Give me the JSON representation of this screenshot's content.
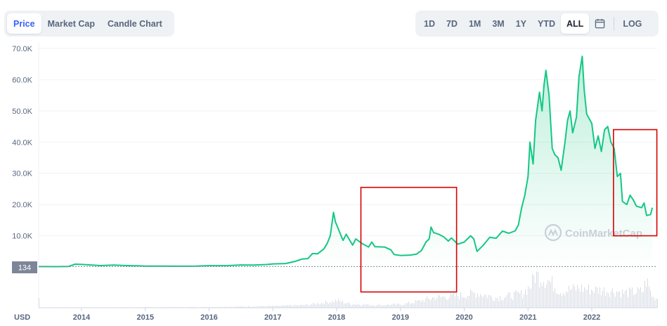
{
  "tabs_left": [
    {
      "label": "Price",
      "active": true
    },
    {
      "label": "Market Cap",
      "active": false
    },
    {
      "label": "Candle Chart",
      "active": false
    }
  ],
  "tabs_right": [
    {
      "label": "1D",
      "active": false
    },
    {
      "label": "7D",
      "active": false
    },
    {
      "label": "1M",
      "active": false
    },
    {
      "label": "3M",
      "active": false
    },
    {
      "label": "1Y",
      "active": false
    },
    {
      "label": "YTD",
      "active": false
    },
    {
      "label": "ALL",
      "active": true
    }
  ],
  "log_label": "LOG",
  "calendar_icon": "calendar-icon",
  "currency_label": "USD",
  "current_price_label": "134",
  "watermark": "CoinMarketCap",
  "colors": {
    "line": "#16c784",
    "area_top": "#16c784",
    "highlight_box": "#d80000",
    "price_tag": "#7d8698"
  },
  "chart_data": {
    "type": "area",
    "title": "",
    "xlabel": "",
    "ylabel": "",
    "currency": "USD",
    "y_ticks": [
      "10.0K",
      "20.0K",
      "30.0K",
      "40.0K",
      "50.0K",
      "60.0K",
      "70.0K"
    ],
    "x_ticks": [
      "2014",
      "2015",
      "2016",
      "2017",
      "2018",
      "2019",
      "2020",
      "2021",
      "2022"
    ],
    "ylim": [
      0,
      70000
    ],
    "xlim": [
      2013.33,
      2022.95
    ],
    "grid": true,
    "current_price": 134,
    "series": [
      {
        "values": [
          [
            2013.33,
            134
          ],
          [
            2013.6,
            110
          ],
          [
            2013.8,
            190
          ],
          [
            2013.9,
            900
          ],
          [
            2014.0,
            800
          ],
          [
            2014.1,
            700
          ],
          [
            2014.3,
            450
          ],
          [
            2014.5,
            600
          ],
          [
            2014.7,
            450
          ],
          [
            2014.9,
            350
          ],
          [
            2015.0,
            300
          ],
          [
            2015.2,
            260
          ],
          [
            2015.5,
            250
          ],
          [
            2015.8,
            300
          ],
          [
            2016.0,
            430
          ],
          [
            2016.3,
            440
          ],
          [
            2016.5,
            650
          ],
          [
            2016.7,
            620
          ],
          [
            2016.9,
            780
          ],
          [
            2017.0,
            1000
          ],
          [
            2017.2,
            1100
          ],
          [
            2017.35,
            1800
          ],
          [
            2017.45,
            2500
          ],
          [
            2017.55,
            2700
          ],
          [
            2017.62,
            4300
          ],
          [
            2017.7,
            4200
          ],
          [
            2017.8,
            5800
          ],
          [
            2017.85,
            7500
          ],
          [
            2017.9,
            10000
          ],
          [
            2017.95,
            17500
          ],
          [
            2017.98,
            14500
          ],
          [
            2018.0,
            13500
          ],
          [
            2018.05,
            11000
          ],
          [
            2018.1,
            8500
          ],
          [
            2018.15,
            10500
          ],
          [
            2018.25,
            7000
          ],
          [
            2018.3,
            9000
          ],
          [
            2018.4,
            7500
          ],
          [
            2018.5,
            6400
          ],
          [
            2018.55,
            8000
          ],
          [
            2018.6,
            6500
          ],
          [
            2018.75,
            6400
          ],
          [
            2018.85,
            5500
          ],
          [
            2018.9,
            4000
          ],
          [
            2019.0,
            3700
          ],
          [
            2019.15,
            3800
          ],
          [
            2019.25,
            4100
          ],
          [
            2019.33,
            5300
          ],
          [
            2019.4,
            8000
          ],
          [
            2019.45,
            9000
          ],
          [
            2019.48,
            12800
          ],
          [
            2019.52,
            11000
          ],
          [
            2019.6,
            10500
          ],
          [
            2019.68,
            9600
          ],
          [
            2019.75,
            8300
          ],
          [
            2019.8,
            9300
          ],
          [
            2019.9,
            7300
          ],
          [
            2020.0,
            8000
          ],
          [
            2020.1,
            10000
          ],
          [
            2020.15,
            9000
          ],
          [
            2020.2,
            5000
          ],
          [
            2020.3,
            7000
          ],
          [
            2020.4,
            9500
          ],
          [
            2020.5,
            9200
          ],
          [
            2020.6,
            11500
          ],
          [
            2020.7,
            10800
          ],
          [
            2020.8,
            11600
          ],
          [
            2020.85,
            13500
          ],
          [
            2020.9,
            19000
          ],
          [
            2020.95,
            23000
          ],
          [
            2021.0,
            29000
          ],
          [
            2021.03,
            40000
          ],
          [
            2021.08,
            33000
          ],
          [
            2021.12,
            47000
          ],
          [
            2021.18,
            56000
          ],
          [
            2021.22,
            50000
          ],
          [
            2021.25,
            58000
          ],
          [
            2021.28,
            63000
          ],
          [
            2021.33,
            55000
          ],
          [
            2021.38,
            38000
          ],
          [
            2021.42,
            36000
          ],
          [
            2021.47,
            35000
          ],
          [
            2021.52,
            31000
          ],
          [
            2021.58,
            40000
          ],
          [
            2021.62,
            47000
          ],
          [
            2021.66,
            50000
          ],
          [
            2021.7,
            43000
          ],
          [
            2021.76,
            48000
          ],
          [
            2021.8,
            61000
          ],
          [
            2021.85,
            67500
          ],
          [
            2021.88,
            57000
          ],
          [
            2021.92,
            49000
          ],
          [
            2022.0,
            46000
          ],
          [
            2022.05,
            38000
          ],
          [
            2022.1,
            42000
          ],
          [
            2022.15,
            37000
          ],
          [
            2022.2,
            44000
          ],
          [
            2022.25,
            45000
          ],
          [
            2022.3,
            40000
          ],
          [
            2022.35,
            38000
          ],
          [
            2022.4,
            29000
          ],
          [
            2022.45,
            30000
          ],
          [
            2022.48,
            21000
          ],
          [
            2022.55,
            20000
          ],
          [
            2022.6,
            23000
          ],
          [
            2022.65,
            21500
          ],
          [
            2022.7,
            19500
          ],
          [
            2022.78,
            19000
          ],
          [
            2022.82,
            20500
          ],
          [
            2022.86,
            16500
          ],
          [
            2022.92,
            16800
          ],
          [
            2022.95,
            19000
          ]
        ]
      }
    ],
    "volume": [
      [
        2013.33,
        0.01
      ],
      [
        2016.0,
        0.02
      ],
      [
        2017.0,
        0.05
      ],
      [
        2017.5,
        0.08
      ],
      [
        2017.9,
        0.18
      ],
      [
        2018.0,
        0.22
      ],
      [
        2018.2,
        0.12
      ],
      [
        2018.6,
        0.08
      ],
      [
        2019.0,
        0.1
      ],
      [
        2019.3,
        0.2
      ],
      [
        2019.5,
        0.3
      ],
      [
        2019.8,
        0.35
      ],
      [
        2020.0,
        0.38
      ],
      [
        2020.2,
        0.45
      ],
      [
        2020.5,
        0.3
      ],
      [
        2020.9,
        0.42
      ],
      [
        2021.05,
        0.7
      ],
      [
        2021.1,
        1.0
      ],
      [
        2021.3,
        0.85
      ],
      [
        2021.5,
        0.5
      ],
      [
        2021.8,
        0.6
      ],
      [
        2022.0,
        0.55
      ],
      [
        2022.4,
        0.5
      ],
      [
        2022.5,
        0.45
      ],
      [
        2022.8,
        0.5
      ],
      [
        2022.85,
        0.85
      ],
      [
        2022.95,
        0.3
      ]
    ],
    "highlight_boxes": [
      {
        "x_from": 2018.38,
        "x_to": 2019.88,
        "y_from": -8000,
        "y_to": 25500
      },
      {
        "x_from": 2022.34,
        "x_to": 2023.02,
        "y_from": 10000,
        "y_to": 44000
      }
    ]
  }
}
